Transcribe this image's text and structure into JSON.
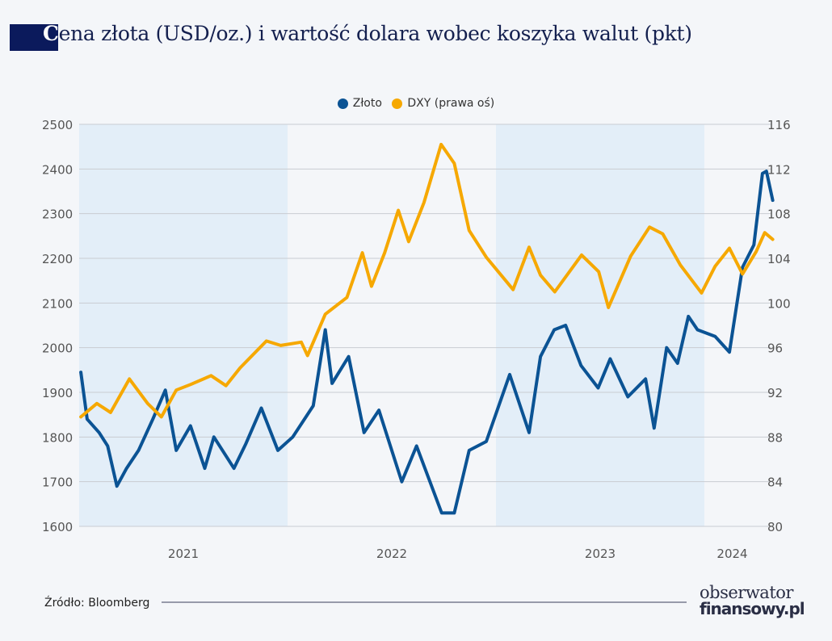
{
  "chart_data": {
    "type": "line",
    "title_first_letter": "C",
    "title_rest": "ena złota (USD/oz.) i wartość dolara wobec koszyka walut (pkt)",
    "left_axis": {
      "ylim": [
        1600,
        2500
      ],
      "ticks": [
        "1600",
        "1700",
        "1800",
        "1900",
        "2000",
        "2100",
        "2200",
        "2300",
        "2400",
        "2500"
      ]
    },
    "right_axis": {
      "ylim": [
        80,
        116
      ],
      "ticks": [
        "80",
        "84",
        "88",
        "92",
        "96",
        "100",
        "104",
        "108",
        "112",
        "116"
      ]
    },
    "x_ticks": [
      "2021",
      "2022",
      "2023",
      "2024"
    ],
    "shaded_years": [
      "2021",
      "2023"
    ],
    "grid": true,
    "legend_position": "top-center",
    "series": [
      {
        "name": "Złoto",
        "axis": "left",
        "color": "#0b5394",
        "points": [
          [
            "2021-01-04",
            1945
          ],
          [
            "2021-01-15",
            1840
          ],
          [
            "2021-02-05",
            1810
          ],
          [
            "2021-02-20",
            1780
          ],
          [
            "2021-03-08",
            1690
          ],
          [
            "2021-03-25",
            1730
          ],
          [
            "2021-04-15",
            1770
          ],
          [
            "2021-05-10",
            1840
          ],
          [
            "2021-06-01",
            1905
          ],
          [
            "2021-06-20",
            1770
          ],
          [
            "2021-07-15",
            1825
          ],
          [
            "2021-08-09",
            1730
          ],
          [
            "2021-08-25",
            1800
          ],
          [
            "2021-09-29",
            1730
          ],
          [
            "2021-10-20",
            1785
          ],
          [
            "2021-11-16",
            1865
          ],
          [
            "2021-12-15",
            1770
          ],
          [
            "2022-01-10",
            1800
          ],
          [
            "2022-02-15",
            1870
          ],
          [
            "2022-03-08",
            2040
          ],
          [
            "2022-03-20",
            1920
          ],
          [
            "2022-04-18",
            1980
          ],
          [
            "2022-05-15",
            1810
          ],
          [
            "2022-06-10",
            1860
          ],
          [
            "2022-07-20",
            1700
          ],
          [
            "2022-08-15",
            1780
          ],
          [
            "2022-09-28",
            1630
          ],
          [
            "2022-10-20",
            1630
          ],
          [
            "2022-11-15",
            1770
          ],
          [
            "2022-12-15",
            1790
          ],
          [
            "2023-01-25",
            1940
          ],
          [
            "2023-02-28",
            1810
          ],
          [
            "2023-03-20",
            1980
          ],
          [
            "2023-04-13",
            2040
          ],
          [
            "2023-05-03",
            2050
          ],
          [
            "2023-05-30",
            1960
          ],
          [
            "2023-06-29",
            1910
          ],
          [
            "2023-07-20",
            1975
          ],
          [
            "2023-08-20",
            1890
          ],
          [
            "2023-09-20",
            1930
          ],
          [
            "2023-10-05",
            1820
          ],
          [
            "2023-10-27",
            2000
          ],
          [
            "2023-11-15",
            1965
          ],
          [
            "2023-12-04",
            2070
          ],
          [
            "2023-12-20",
            2040
          ],
          [
            "2024-01-20",
            2025
          ],
          [
            "2024-02-14",
            1990
          ],
          [
            "2024-03-08",
            2180
          ],
          [
            "2024-03-28",
            2230
          ],
          [
            "2024-04-12",
            2390
          ],
          [
            "2024-04-19",
            2395
          ],
          [
            "2024-04-30",
            2330
          ]
        ]
      },
      {
        "name": "DXY (prawa oś)",
        "axis": "right",
        "color": "#f6a800",
        "points": [
          [
            "2021-01-04",
            89.8
          ],
          [
            "2021-02-01",
            91
          ],
          [
            "2021-02-25",
            90.2
          ],
          [
            "2021-03-30",
            93.2
          ],
          [
            "2021-05-01",
            91
          ],
          [
            "2021-05-25",
            89.8
          ],
          [
            "2021-06-20",
            92.2
          ],
          [
            "2021-07-15",
            92.7
          ],
          [
            "2021-08-20",
            93.5
          ],
          [
            "2021-09-15",
            92.6
          ],
          [
            "2021-10-10",
            94.2
          ],
          [
            "2021-11-25",
            96.6
          ],
          [
            "2021-12-20",
            96.2
          ],
          [
            "2022-01-25",
            96.5
          ],
          [
            "2022-02-05",
            95.3
          ],
          [
            "2022-03-08",
            99
          ],
          [
            "2022-04-15",
            100.5
          ],
          [
            "2022-05-12",
            104.5
          ],
          [
            "2022-05-28",
            101.5
          ],
          [
            "2022-06-20",
            104.5
          ],
          [
            "2022-07-14",
            108.3
          ],
          [
            "2022-08-01",
            105.5
          ],
          [
            "2022-08-28",
            109
          ],
          [
            "2022-09-27",
            114.2
          ],
          [
            "2022-10-20",
            112.5
          ],
          [
            "2022-11-15",
            106.5
          ],
          [
            "2022-12-15",
            104.1
          ],
          [
            "2023-01-31",
            101.2
          ],
          [
            "2023-02-28",
            105
          ],
          [
            "2023-03-20",
            102.5
          ],
          [
            "2023-04-14",
            101
          ],
          [
            "2023-05-31",
            104.3
          ],
          [
            "2023-06-30",
            102.8
          ],
          [
            "2023-07-17",
            99.6
          ],
          [
            "2023-08-25",
            104.2
          ],
          [
            "2023-09-27",
            106.8
          ],
          [
            "2023-10-20",
            106.2
          ],
          [
            "2023-11-20",
            103.4
          ],
          [
            "2023-12-27",
            100.9
          ],
          [
            "2024-01-20",
            103.3
          ],
          [
            "2024-02-14",
            104.9
          ],
          [
            "2024-03-08",
            102.6
          ],
          [
            "2024-04-01",
            104.6
          ],
          [
            "2024-04-16",
            106.3
          ],
          [
            "2024-04-30",
            105.7
          ]
        ]
      }
    ],
    "source": "Źródło: Bloomberg"
  },
  "branding": {
    "line1": "obserwator",
    "line2": "finansowy.pl"
  }
}
